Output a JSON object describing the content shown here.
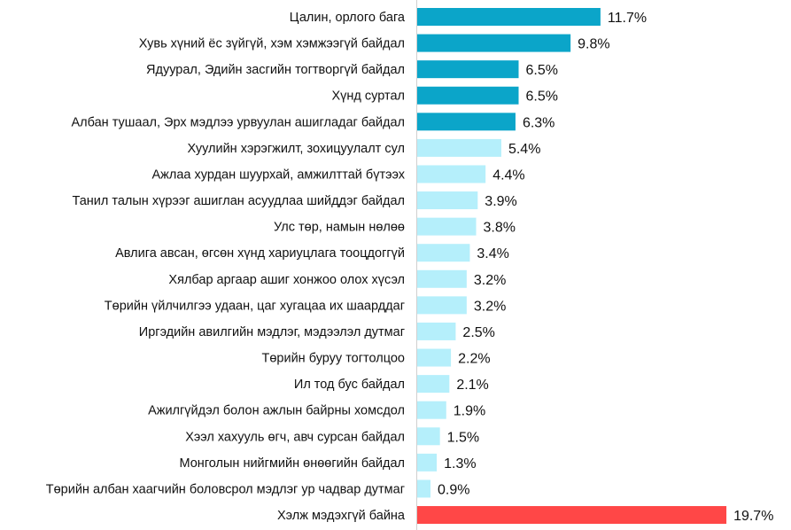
{
  "chart_data": {
    "type": "bar",
    "orientation": "horizontal",
    "title": "",
    "xlabel": "",
    "ylabel": "",
    "xlim": [
      0,
      19.7
    ],
    "grid": false,
    "value_suffix": "%",
    "categories": [
      "Цалин, орлого бага",
      "Хувь хүний ёс зүйгүй, хэм хэмжээгүй байдал",
      "Ядуурал, Эдийн засгийн тогтворгүй байдал",
      "Хүнд суртал",
      "Албан тушаал, Эрх мэдлээ урвуулан ашигладаг байдал",
      "Хуулийн хэрэгжилт, зохицуулалт сул",
      "Ажлаа хурдан шуурхай, амжилттай бүтээх",
      "Танил талын хүрээг ашиглан асуудлаа шийддэг байдал",
      "Улс төр, намын нөлөө",
      "Авлига авсан, өгсөн хүнд хариуцлага тооцдоггүй",
      "Хялбар аргаар ашиг хонжоо олох хүсэл",
      "Төрийн үйлчилгээ удаан, цаг хугацаа их шаарддаг",
      "Иргэдийн авилгийн мэдлэг, мэдээлэл дутмаг",
      "Төрийн буруу тогтолцоо",
      "Ил тод бус байдал",
      "Ажилгүйдэл болон ажлын байрны хомсдол",
      "Хээл хахууль өгч, авч сурсан байдал",
      "Монголын нийгмийн өнөөгийн байдал",
      "Төрийн албан хаагчийн боловсрол мэдлэг ур чадвар дутмаг",
      "Хэлж мэдэхгүй байна"
    ],
    "values": [
      11.7,
      9.8,
      6.5,
      6.5,
      6.3,
      5.4,
      4.4,
      3.9,
      3.8,
      3.4,
      3.2,
      3.2,
      2.5,
      2.2,
      2.1,
      1.9,
      1.5,
      1.3,
      0.9,
      19.7
    ],
    "value_labels": [
      "11.7%",
      "9.8%",
      "6.5%",
      "6.5%",
      "6.3%",
      "5.4%",
      "4.4%",
      "3.9%",
      "3.8%",
      "3.4%",
      "3.2%",
      "3.2%",
      "2.5%",
      "2.2%",
      "2.1%",
      "1.9%",
      "1.5%",
      "1.3%",
      "0.9%",
      "19.7%"
    ],
    "bar_groups": [
      "top",
      "top",
      "top",
      "top",
      "top",
      "other",
      "other",
      "other",
      "other",
      "other",
      "other",
      "other",
      "other",
      "other",
      "other",
      "other",
      "other",
      "other",
      "other",
      "unknown"
    ],
    "colors": {
      "top": "#0BA5C9",
      "other": "#B5EFFB",
      "unknown": "#FF4747",
      "axis": "#D0D0D0"
    }
  }
}
